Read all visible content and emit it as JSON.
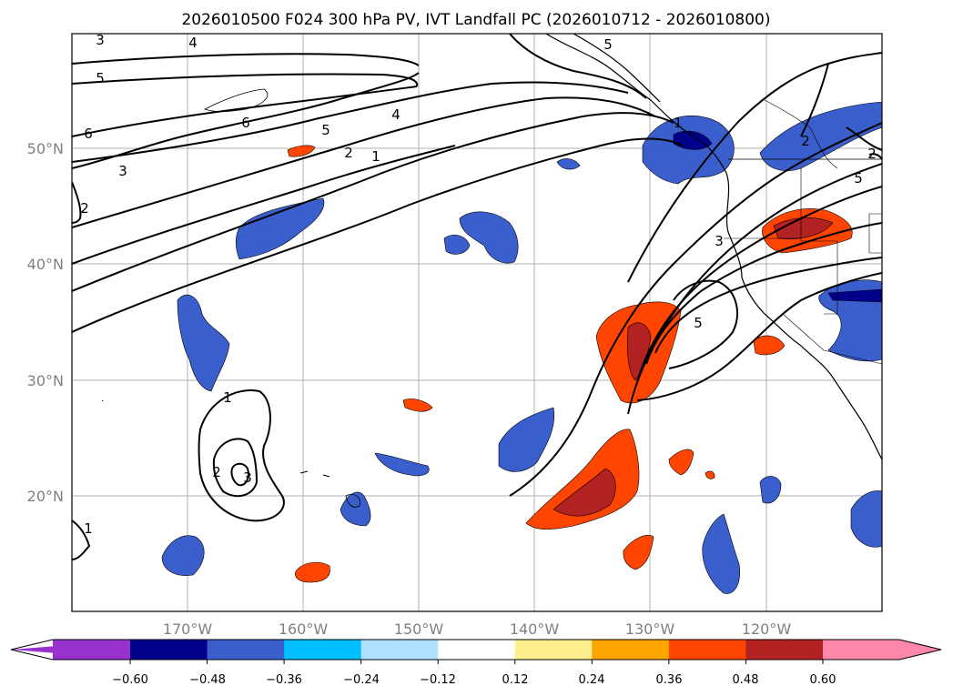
{
  "title": "2026010500 F024 300 hPa PV, IVT Landfall PC (2026010712 - 2026010800)",
  "map": {
    "lat_labels": [
      "50°N",
      "40°N",
      "30°N",
      "20°N"
    ],
    "lon_labels": [
      "170°W",
      "160°W",
      "150°W",
      "140°W",
      "130°W",
      "120°W"
    ],
    "contour_labels": [
      "3",
      "4",
      "5",
      "6",
      "5",
      "4",
      "6",
      "2",
      "1",
      "3",
      "2",
      "1",
      "2",
      "5",
      "2",
      "5",
      "3",
      "5",
      "1",
      "2",
      "3",
      "1"
    ]
  },
  "colorbar": {
    "tick_labels": [
      "−0.60",
      "−0.48",
      "−0.36",
      "−0.24",
      "−0.12",
      "0.12",
      "0.24",
      "0.36",
      "0.48",
      "0.60"
    ],
    "colors": [
      "#9932cc",
      "#00008b",
      "#3a5fcd",
      "#00bfff",
      "#b0e2ff",
      "#ffffff",
      "#fff08f",
      "#ffa500",
      "#ff4500",
      "#b22222",
      "#ff88aa"
    ]
  }
}
